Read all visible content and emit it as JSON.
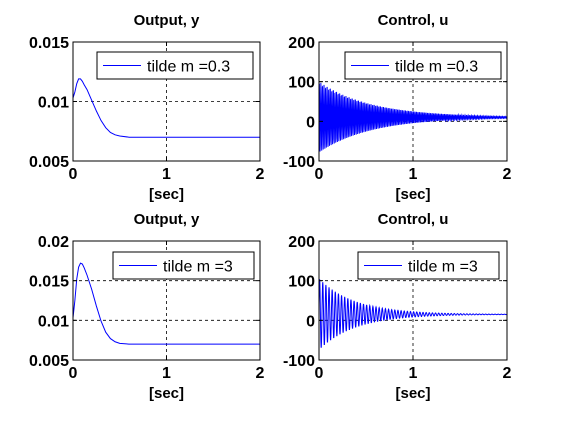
{
  "chart_data": [
    {
      "type": "line",
      "title": "Output, y",
      "xlabel": "[sec]",
      "ylabel": "",
      "xlim": [
        0,
        2
      ],
      "ylim": [
        0.005,
        0.015
      ],
      "xticks": [
        0,
        1,
        2
      ],
      "xtick_labels": [
        "0",
        "1",
        "2"
      ],
      "yticks": [
        0.005,
        0.01,
        0.015
      ],
      "ytick_labels": [
        "0.005",
        "0.01",
        "0.015"
      ],
      "grid": true,
      "legend_position": "top-right",
      "series": [
        {
          "name": "tilde m =0.3",
          "color": "#0000ff",
          "x": [
            0,
            0.02,
            0.04,
            0.06,
            0.08,
            0.1,
            0.12,
            0.15,
            0.2,
            0.25,
            0.3,
            0.35,
            0.4,
            0.45,
            0.5,
            0.6,
            0.7,
            0.8,
            1.0,
            1.5,
            2.0
          ],
          "y": [
            0.0103,
            0.0108,
            0.0115,
            0.0119,
            0.0119,
            0.0117,
            0.0114,
            0.011,
            0.0101,
            0.0092,
            0.0084,
            0.0078,
            0.0074,
            0.0072,
            0.0071,
            0.007,
            0.007,
            0.007,
            0.007,
            0.007,
            0.007
          ]
        }
      ]
    },
    {
      "type": "line",
      "title": "Control, u",
      "xlabel": "[sec]",
      "ylabel": "",
      "xlim": [
        0,
        2
      ],
      "ylim": [
        -100,
        200
      ],
      "xticks": [
        0,
        1,
        2
      ],
      "xtick_labels": [
        "0",
        "1",
        "2"
      ],
      "yticks": [
        -100,
        0,
        100,
        200
      ],
      "ytick_labels": [
        "-100",
        "0",
        "100",
        "200"
      ],
      "grid": true,
      "legend_position": "top-right",
      "oscillation": {
        "center": 10,
        "envelope_start": 90,
        "decay_rate": 1.8,
        "frequency_hz": 60
      },
      "series": [
        {
          "name": "tilde m =0.3",
          "color": "#0000ff"
        }
      ]
    },
    {
      "type": "line",
      "title": "Output, y",
      "xlabel": "[sec]",
      "ylabel": "",
      "xlim": [
        0,
        2
      ],
      "ylim": [
        0.005,
        0.02
      ],
      "xticks": [
        0,
        1,
        2
      ],
      "xtick_labels": [
        "0",
        "1",
        "2"
      ],
      "yticks": [
        0.005,
        0.01,
        0.015,
        0.02
      ],
      "ytick_labels": [
        "0.005",
        "0.01",
        "0.015",
        "0.02"
      ],
      "grid": true,
      "legend_position": "top-right",
      "series": [
        {
          "name": "tilde m =3",
          "color": "#0000ff",
          "x": [
            0,
            0.02,
            0.04,
            0.06,
            0.08,
            0.1,
            0.12,
            0.15,
            0.2,
            0.25,
            0.3,
            0.35,
            0.4,
            0.45,
            0.5,
            0.6,
            0.7,
            0.8,
            1.0,
            1.5,
            2.0
          ],
          "y": [
            0.0103,
            0.0125,
            0.0152,
            0.0167,
            0.0172,
            0.0171,
            0.0166,
            0.0157,
            0.0139,
            0.0118,
            0.0099,
            0.0085,
            0.0077,
            0.0073,
            0.0071,
            0.007,
            0.007,
            0.007,
            0.007,
            0.007,
            0.007
          ]
        }
      ]
    },
    {
      "type": "line",
      "title": "Control, u",
      "xlabel": "[sec]",
      "ylabel": "",
      "xlim": [
        0,
        2
      ],
      "ylim": [
        -100,
        200
      ],
      "xticks": [
        0,
        1,
        2
      ],
      "xtick_labels": [
        "0",
        "1",
        "2"
      ],
      "yticks": [
        -100,
        0,
        100,
        200
      ],
      "ytick_labels": [
        "-100",
        "0",
        "100",
        "200"
      ],
      "grid": true,
      "legend_position": "top-right",
      "oscillation": {
        "center": 15,
        "envelope_start": 90,
        "decay_rate": 2.6,
        "frequency_hz": 30
      },
      "series": [
        {
          "name": "tilde m =3",
          "color": "#0000ff"
        }
      ]
    }
  ]
}
